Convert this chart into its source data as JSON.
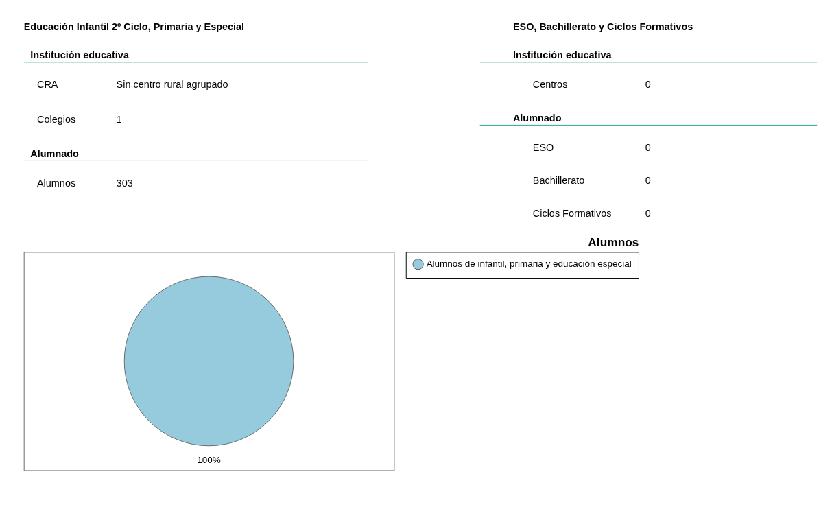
{
  "chart_data": [
    {
      "type": "other",
      "title": "Educación Infantil 2º Ciclo, Primaria y Especial",
      "annotations": [
        "Institución educativa",
        "CRA",
        "Sin centro rural agrupado",
        "Colegios",
        "1",
        "Alumnado",
        "Alumnos",
        "303"
      ]
    },
    {
      "type": "other",
      "title": "ESO, Bachillerato y Ciclos Formativos",
      "annotations": [
        "Institución educativa",
        "Centros",
        "0",
        "Alumnado",
        "ESO",
        "0",
        "Bachillerato",
        "0",
        "Ciclos Formativos",
        "0"
      ]
    },
    {
      "type": "pie",
      "title": "Alumnos",
      "categories": [
        "Alumnos de infantil, primaria y educación especial"
      ],
      "values": [
        100
      ],
      "colors": [
        "#96cbdd"
      ],
      "value_labels": [
        "100%"
      ],
      "legend": "right"
    }
  ]
}
